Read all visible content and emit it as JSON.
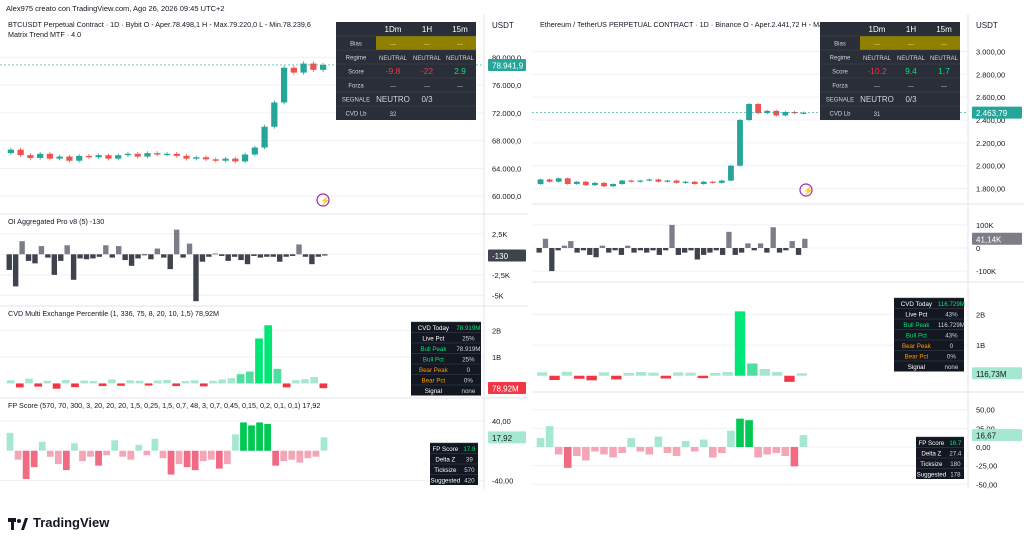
{
  "header": "Alex975 creato con TradingView.com, Ago 26, 2026 09:45 UTC+2",
  "brand": {
    "name": "TradingView"
  },
  "colors": {
    "up": "#26a69a",
    "down": "#ef5350",
    "grid": "#eef0f3",
    "text": "#131722",
    "muted": "#787b86",
    "bias": "#8f8000",
    "green": "#00e676",
    "red": "#f23645",
    "pinkLight": "#f5a6b6",
    "greenLight": "#a5e8cf",
    "grey": "#6a6d78"
  },
  "charts": [
    {
      "id": "btc",
      "title": "BTCUSDT Perpetual Contract · 1D · Bybit  O - Aper.78.498,1  H - Max.79.220,0  L - Min.78.239,6",
      "subtitle": "Matrix Trend MTF · 4.0",
      "currency": "USDT",
      "price_ticks": [
        "80.000,0",
        "76.000,0",
        "72.000,0",
        "68.000,0",
        "64.000,0",
        "60.000,0"
      ],
      "price_label": "78.941,9",
      "x_ticks": [
        "5",
        "Ago",
        "5",
        "9",
        "13",
        "17",
        "21",
        "25",
        "Set",
        "5",
        "9"
      ],
      "candles": [
        {
          "o": 66200,
          "c": 66700
        },
        {
          "o": 66700,
          "c": 65900
        },
        {
          "o": 65900,
          "c": 65500
        },
        {
          "o": 65500,
          "c": 66100
        },
        {
          "o": 66100,
          "c": 65400
        },
        {
          "o": 65400,
          "c": 65700
        },
        {
          "o": 65700,
          "c": 65100
        },
        {
          "o": 65100,
          "c": 65800
        },
        {
          "o": 65800,
          "c": 65600
        },
        {
          "o": 65600,
          "c": 65900
        },
        {
          "o": 65900,
          "c": 65400
        },
        {
          "o": 65400,
          "c": 65900
        },
        {
          "o": 65900,
          "c": 66100
        },
        {
          "o": 66100,
          "c": 65700
        },
        {
          "o": 65700,
          "c": 66200
        },
        {
          "o": 66200,
          "c": 66000
        },
        {
          "o": 66000,
          "c": 66100
        },
        {
          "o": 66100,
          "c": 65800
        },
        {
          "o": 65800,
          "c": 65400
        },
        {
          "o": 65400,
          "c": 65600
        },
        {
          "o": 65600,
          "c": 65300
        },
        {
          "o": 65300,
          "c": 65100
        },
        {
          "o": 65100,
          "c": 65400
        },
        {
          "o": 65400,
          "c": 65000
        },
        {
          "o": 65000,
          "c": 66000
        },
        {
          "o": 66000,
          "c": 67000
        },
        {
          "o": 67000,
          "c": 70000
        },
        {
          "o": 70000,
          "c": 73500
        },
        {
          "o": 73500,
          "c": 78500
        },
        {
          "o": 78500,
          "c": 77800
        },
        {
          "o": 77800,
          "c": 79100
        },
        {
          "o": 79100,
          "c": 78200
        },
        {
          "o": 78200,
          "c": 78900
        }
      ],
      "price_range": [
        58000,
        82500
      ],
      "mtf_table": {
        "headers": [
          "",
          "1Dm",
          "1H",
          "15m"
        ],
        "rows": [
          {
            "label": "Bias",
            "values": [
              "---",
              "---",
              "---"
            ]
          },
          {
            "label": "Regime",
            "values": [
              "NEUTRAL",
              "NEUTRAL",
              "NEUTRAL"
            ]
          },
          {
            "label": "Score",
            "values": [
              "-9.8",
              "-22",
              "2.9"
            ]
          },
          {
            "label": "Forza",
            "values": [
              "---",
              "---",
              "---"
            ]
          },
          {
            "label": "SEGNALE",
            "values": [
              "NEUTRO",
              "0/3",
              ""
            ]
          },
          {
            "label": "CVD Lb",
            "values": [
              "32",
              "",
              ""
            ]
          }
        ]
      },
      "oi": {
        "title": "OI Aggregated Pro v8 (5)  -130",
        "ticks": [
          "2,5K",
          "0",
          "-2,5K",
          "-5K"
        ],
        "label": "-130",
        "range": [
          -5800,
          3200
        ],
        "values": [
          -1900,
          -3900,
          1600,
          -800,
          -1100,
          1000,
          -400,
          -2500,
          -800,
          1100,
          -3100,
          -500,
          -600,
          -500,
          -300,
          1100,
          -400,
          1000,
          -700,
          -1400,
          -500,
          -100,
          -600,
          700,
          -400,
          -1800,
          3000,
          -400,
          1300,
          -5700,
          -900,
          -300,
          100,
          -200,
          -800,
          -300,
          -700,
          -1200,
          -200,
          -400,
          -300,
          -300,
          -900,
          -300,
          -200,
          1200,
          -300,
          -1200,
          -300,
          -150
        ]
      },
      "cvd": {
        "title": "CVD Multi Exchange Percentile (1, 336, 75, 8, 20, 10, 1,5)  78,92M",
        "ticks": [
          "2B",
          "1B"
        ],
        "label": "78,92M",
        "range": [
          -400,
          2400
        ],
        "values": [
          120,
          -150,
          180,
          -120,
          100,
          -200,
          130,
          -140,
          110,
          90,
          -100,
          150,
          -90,
          120,
          100,
          -80,
          110,
          130,
          -100,
          90,
          120,
          -110,
          100,
          150,
          200,
          350,
          450,
          1700,
          2200,
          550,
          -150,
          120,
          160,
          240,
          -180
        ],
        "table": [
          {
            "label": "CVD Today",
            "value": "78.919M"
          },
          {
            "label": "Live Pct",
            "value": "25%"
          },
          {
            "label": "Bull Peak",
            "value": "78.919M"
          },
          {
            "label": "Bull Pct",
            "value": "25%"
          },
          {
            "label": "Bear Peak",
            "value": "0"
          },
          {
            "label": "Bear Pct",
            "value": "0%"
          },
          {
            "label": "Signal",
            "value": "none"
          }
        ]
      },
      "fp": {
        "title": "FP Score (570, 70, 300, 3, 20, 20, 20, 1,5, 0,25, 1,5, 0,7, 48, 3, 0,7, 0,45, 0,15, 0,2, 0,1, 0,1)  17,92",
        "ticks": [
          "40,00",
          "-40,00"
        ],
        "label": "17,92",
        "range": [
          -50,
          52
        ],
        "values": [
          24,
          -12,
          -38,
          -22,
          12,
          -8,
          -18,
          -26,
          10,
          -14,
          -8,
          -20,
          -6,
          14,
          -8,
          -12,
          8,
          -6,
          16,
          -10,
          -32,
          -18,
          -22,
          -26,
          -14,
          -12,
          -24,
          -18,
          22,
          38,
          34,
          38,
          36,
          -20,
          -14,
          -12,
          -16,
          -10,
          -8,
          18
        ],
        "table": [
          {
            "label": "FP Score",
            "value": "17.9"
          },
          {
            "label": "Delta Z",
            "value": "39"
          },
          {
            "label": "Ticksize",
            "value": "570"
          },
          {
            "label": "Suggested",
            "value": "420"
          }
        ]
      }
    },
    {
      "id": "eth",
      "title": "Ethereum / TetherUS PERPETUAL CONTRACT · 1D · Binance  O - Aper.2.441,72  H - Max.2.4",
      "subtitle": "",
      "currency": "USDT",
      "price_ticks": [
        "3.000,00",
        "2.800,00",
        "2.600,00",
        "2.400,00",
        "2.200,00",
        "2.000,00",
        "1.800,00"
      ],
      "price_label": "2.463,79",
      "x_ticks": [
        "25",
        "Ago",
        "5",
        "9",
        "13",
        "17",
        "21",
        "25",
        "Set",
        "5",
        "9",
        "13"
      ],
      "candles": [
        {
          "o": 1840,
          "c": 1880
        },
        {
          "o": 1880,
          "c": 1860
        },
        {
          "o": 1860,
          "c": 1890
        },
        {
          "o": 1890,
          "c": 1840
        },
        {
          "o": 1840,
          "c": 1860
        },
        {
          "o": 1860,
          "c": 1830
        },
        {
          "o": 1830,
          "c": 1850
        },
        {
          "o": 1850,
          "c": 1820
        },
        {
          "o": 1820,
          "c": 1840
        },
        {
          "o": 1840,
          "c": 1870
        },
        {
          "o": 1870,
          "c": 1860
        },
        {
          "o": 1860,
          "c": 1870
        },
        {
          "o": 1870,
          "c": 1880
        },
        {
          "o": 1880,
          "c": 1860
        },
        {
          "o": 1860,
          "c": 1870
        },
        {
          "o": 1870,
          "c": 1850
        },
        {
          "o": 1850,
          "c": 1860
        },
        {
          "o": 1860,
          "c": 1840
        },
        {
          "o": 1840,
          "c": 1860
        },
        {
          "o": 1860,
          "c": 1850
        },
        {
          "o": 1850,
          "c": 1870
        },
        {
          "o": 1870,
          "c": 2000
        },
        {
          "o": 2000,
          "c": 2400
        },
        {
          "o": 2400,
          "c": 2540
        },
        {
          "o": 2540,
          "c": 2460
        },
        {
          "o": 2460,
          "c": 2480
        },
        {
          "o": 2480,
          "c": 2440
        },
        {
          "o": 2440,
          "c": 2470
        },
        {
          "o": 2470,
          "c": 2460
        },
        {
          "o": 2460,
          "c": 2464
        }
      ],
      "price_range": [
        1700,
        3100
      ],
      "mtf_table": {
        "headers": [
          "",
          "1Dm",
          "1H",
          "15m"
        ],
        "rows": [
          {
            "label": "Bias",
            "values": [
              "---",
              "---",
              "---"
            ]
          },
          {
            "label": "Regime",
            "values": [
              "NEUTRAL",
              "NEUTRAL",
              "NEUTRAL"
            ]
          },
          {
            "label": "Score",
            "values": [
              "-10.2",
              "9.4",
              "1.7"
            ]
          },
          {
            "label": "Forza",
            "values": [
              "---",
              "---",
              "---"
            ]
          },
          {
            "label": "SEGNALE",
            "values": [
              "NEUTRO",
              "0/3",
              ""
            ]
          },
          {
            "label": "CVD Lb",
            "values": [
              "31",
              "",
              ""
            ]
          }
        ]
      },
      "oi": {
        "title": "",
        "ticks": [
          "100K",
          "0",
          "-100K"
        ],
        "label": "41,14K",
        "range": [
          -130000,
          130000
        ],
        "values": [
          -20000,
          40000,
          -100000,
          -10000,
          10000,
          30000,
          -20000,
          -10000,
          -30000,
          -40000,
          10000,
          -20000,
          -10000,
          -30000,
          10000,
          -20000,
          -10000,
          -20000,
          -10000,
          -30000,
          -10000,
          100000,
          -30000,
          -20000,
          -10000,
          -50000,
          -30000,
          -20000,
          -10000,
          -30000,
          70000,
          -30000,
          -20000,
          20000,
          -10000,
          20000,
          -20000,
          90000,
          -20000,
          -10000,
          30000,
          -30000,
          40000
        ],
        "unit": "K"
      },
      "cvd": {
        "title": "",
        "ticks": [
          "2B",
          "1B"
        ],
        "label": "116,73M",
        "range": [
          -400,
          2600
        ],
        "values": [
          110,
          -140,
          130,
          -100,
          -150,
          110,
          -120,
          90,
          120,
          100,
          -90,
          110,
          100,
          -80,
          90,
          120,
          2100,
          400,
          220,
          120,
          -200,
          80
        ],
        "table": [
          {
            "label": "CVD Today",
            "value": "116.729M"
          },
          {
            "label": "Live Pct",
            "value": "43%"
          },
          {
            "label": "Bull Peak",
            "value": "116.729M"
          },
          {
            "label": "Bull Pct",
            "value": "43%"
          },
          {
            "label": "Bear Peak",
            "value": "0"
          },
          {
            "label": "Bear Pct",
            "value": "0%"
          },
          {
            "label": "Signal",
            "value": "none"
          }
        ]
      },
      "fp": {
        "title": "",
        "ticks": [
          "50,00",
          "25,00",
          "0,00",
          "-25,00",
          "-50,00"
        ],
        "label": "16,67",
        "range": [
          -55,
          55
        ],
        "values": [
          12,
          28,
          -10,
          -28,
          -12,
          -18,
          -6,
          -10,
          -14,
          -8,
          12,
          -6,
          -10,
          14,
          -8,
          -12,
          8,
          -6,
          10,
          -14,
          -8,
          22,
          38,
          36,
          -14,
          -10,
          -8,
          -12,
          -26,
          16
        ],
        "table": [
          {
            "label": "FP Score",
            "value": "16.7"
          },
          {
            "label": "Delta Z",
            "value": "27.4"
          },
          {
            "label": "Ticksize",
            "value": "180"
          },
          {
            "label": "Suggested",
            "value": "178"
          }
        ]
      }
    }
  ],
  "chart_data": [
    {
      "type": "candlestick",
      "title": "BTCUSDT Perpetual Contract · 1D · Bybit",
      "y_ticks": [
        "80.000,0",
        "76.000,0",
        "72.000,0",
        "68.000,0",
        "64.000,0",
        "60.000,0"
      ],
      "x_ticks": [
        "5",
        "Ago",
        "5",
        "9",
        "13",
        "17",
        "21",
        "25",
        "Set",
        "5",
        "9"
      ],
      "last_price": "78.941,9"
    },
    {
      "type": "candlestick",
      "title": "Ethereum / TetherUS PERPETUAL CONTRACT · 1D · Binance",
      "y_ticks": [
        "3.000,00",
        "2.800,00",
        "2.600,00",
        "2.400,00",
        "2.200,00",
        "2.000,00",
        "1.800,00"
      ],
      "x_ticks": [
        "25",
        "Ago",
        "5",
        "9",
        "13",
        "17",
        "21",
        "25",
        "Set",
        "5",
        "9",
        "13"
      ],
      "last_price": "2.463,79"
    }
  ]
}
